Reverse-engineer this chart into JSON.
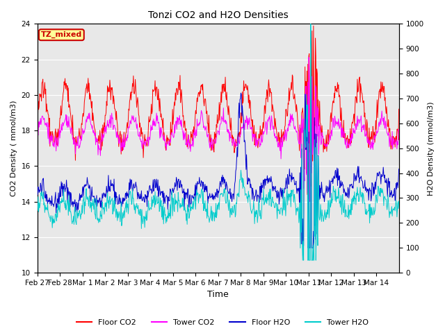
{
  "title": "Tonzi CO2 and H2O Densities",
  "xlabel": "Time",
  "ylabel_left": "CO2 Density ( mmol/m3)",
  "ylabel_right": "H2O Density (mmol/m3)",
  "ylim_left": [
    10,
    24
  ],
  "ylim_right": [
    0,
    1000
  ],
  "yticks_left": [
    10,
    12,
    14,
    16,
    18,
    20,
    22,
    24
  ],
  "yticks_right": [
    0,
    100,
    200,
    300,
    400,
    500,
    600,
    700,
    800,
    900,
    1000
  ],
  "colors": {
    "floor_co2": "#ff0000",
    "tower_co2": "#ff00ff",
    "floor_h2o": "#0000cd",
    "tower_h2o": "#00cccc"
  },
  "annotation_text": "TZ_mixed",
  "annotation_color": "#cc0000",
  "annotation_bg": "#ffff99",
  "background_color": "#e8e8e8",
  "plot_bg": "#ffffff",
  "grid_color": "#ffffff",
  "n_days": 16,
  "tick_labels": [
    "Feb 27",
    "Feb 28",
    "Mar 1",
    "Mar 2",
    "Mar 3",
    "Mar 4",
    "Mar 5",
    "Mar 6",
    "Mar 7",
    "Mar 8",
    "Mar 9",
    "Mar 10",
    "Mar 11",
    "Mar 12",
    "Mar 13",
    "Mar 14"
  ]
}
